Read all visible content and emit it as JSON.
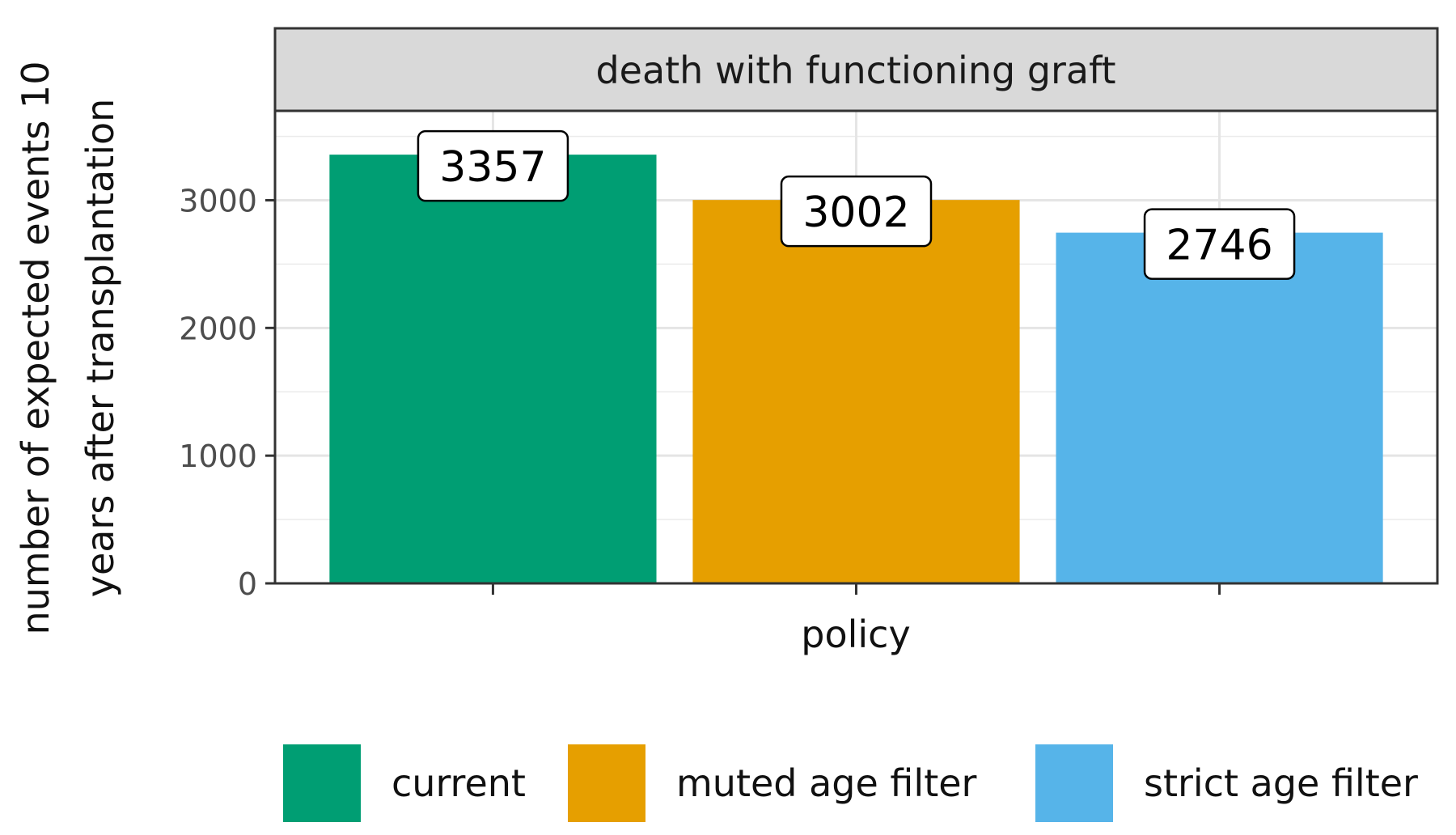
{
  "chart_data": {
    "type": "bar",
    "facet_title": "death with functioning graft",
    "categories": [
      "current",
      "muted age filter",
      "strict age filter"
    ],
    "values": [
      3357,
      3002,
      2746
    ],
    "data_labels": [
      "3357",
      "3002",
      "2746"
    ],
    "colors": [
      "#009E73",
      "#E69F00",
      "#56B4E9"
    ],
    "xlabel": "policy",
    "ylabel_lines": [
      "number of expected events 10",
      "years after transplantation"
    ],
    "ylim": [
      0,
      3700
    ],
    "yticks": [
      0,
      1000,
      2000,
      3000
    ],
    "ytick_labels": [
      "0",
      "1000",
      "2000",
      "3000"
    ],
    "grid": true,
    "legend_position": "bottom",
    "legend": [
      {
        "label": "current",
        "color": "#009E73"
      },
      {
        "label": "muted age filter",
        "color": "#E69F00"
      },
      {
        "label": "strict age filter",
        "color": "#56B4E9"
      }
    ]
  }
}
